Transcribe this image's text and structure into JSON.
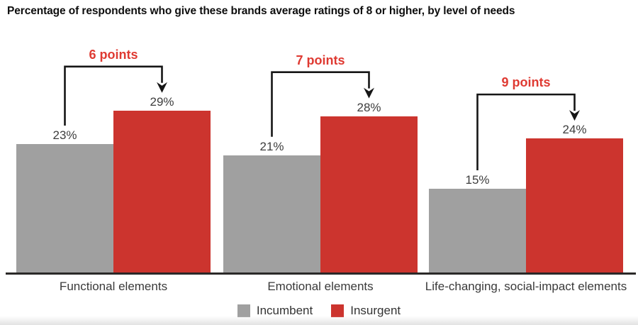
{
  "title": "Percentage of respondents who give these brands average ratings of 8 or higher, by level of needs",
  "colors": {
    "incumbent": "#a0a0a0",
    "insurgent": "#cc342e",
    "diff_text": "#df3a32",
    "bracket": "#161616",
    "axis": "#2b2928",
    "value_label": "#3d3d3d",
    "category_label": "#3a3a3a"
  },
  "legend": {
    "items": [
      {
        "label": "Incumbent",
        "color": "#a0a0a0"
      },
      {
        "label": "Insurgent",
        "color": "#cc342e"
      }
    ]
  },
  "chart_data": {
    "type": "bar",
    "title": "Percentage of respondents who give these brands average ratings of 8 or higher, by level of needs",
    "categories": [
      "Functional elements",
      "Emotional elements",
      "Life-changing, social-impact elements"
    ],
    "series": [
      {
        "name": "Incumbent",
        "values": [
          23,
          21,
          15
        ]
      },
      {
        "name": "Insurgent",
        "values": [
          29,
          28,
          24
        ]
      }
    ],
    "value_labels": {
      "incumbent": [
        "23%",
        "21%",
        "15%"
      ],
      "insurgent": [
        "29%",
        "28%",
        "24%"
      ]
    },
    "diff_annotations": [
      "6 points",
      "7 points",
      "9 points"
    ],
    "unit": "%",
    "xlabel": "",
    "ylabel": "",
    "ylim": [
      0,
      48
    ],
    "grid": false,
    "legend_position": "bottom-center"
  }
}
